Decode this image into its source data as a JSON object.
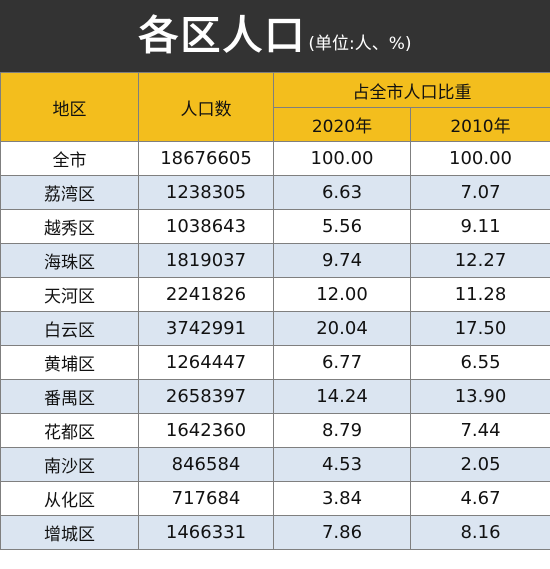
{
  "title": {
    "main": "各区人口",
    "unit": "(单位:人、%)"
  },
  "colors": {
    "title_background": "#333333",
    "header_background": "#f3be1d",
    "stripe_background": "#dbe5f1"
  },
  "table": {
    "headers": {
      "district": "地区",
      "population": "人口数",
      "share_group": "占全市人口比重",
      "year_2020": "2020年",
      "year_2010": "2010年"
    },
    "rows": [
      {
        "district": "全市",
        "population": "18676605",
        "share_2020": "100.00",
        "share_2010": "100.00"
      },
      {
        "district": "荔湾区",
        "population": "1238305",
        "share_2020": "6.63",
        "share_2010": "7.07"
      },
      {
        "district": "越秀区",
        "population": "1038643",
        "share_2020": "5.56",
        "share_2010": "9.11"
      },
      {
        "district": "海珠区",
        "population": "1819037",
        "share_2020": "9.74",
        "share_2010": "12.27"
      },
      {
        "district": "天河区",
        "population": "2241826",
        "share_2020": "12.00",
        "share_2010": "11.28"
      },
      {
        "district": "白云区",
        "population": "3742991",
        "share_2020": "20.04",
        "share_2010": "17.50"
      },
      {
        "district": "黄埔区",
        "population": "1264447",
        "share_2020": "6.77",
        "share_2010": "6.55"
      },
      {
        "district": "番禺区",
        "population": "2658397",
        "share_2020": "14.24",
        "share_2010": "13.90"
      },
      {
        "district": "花都区",
        "population": "1642360",
        "share_2020": "8.79",
        "share_2010": "7.44"
      },
      {
        "district": "南沙区",
        "population": "846584",
        "share_2020": "4.53",
        "share_2010": "2.05"
      },
      {
        "district": "从化区",
        "population": "717684",
        "share_2020": "3.84",
        "share_2010": "4.67"
      },
      {
        "district": "增城区",
        "population": "1466331",
        "share_2020": "7.86",
        "share_2010": "8.16"
      }
    ]
  }
}
